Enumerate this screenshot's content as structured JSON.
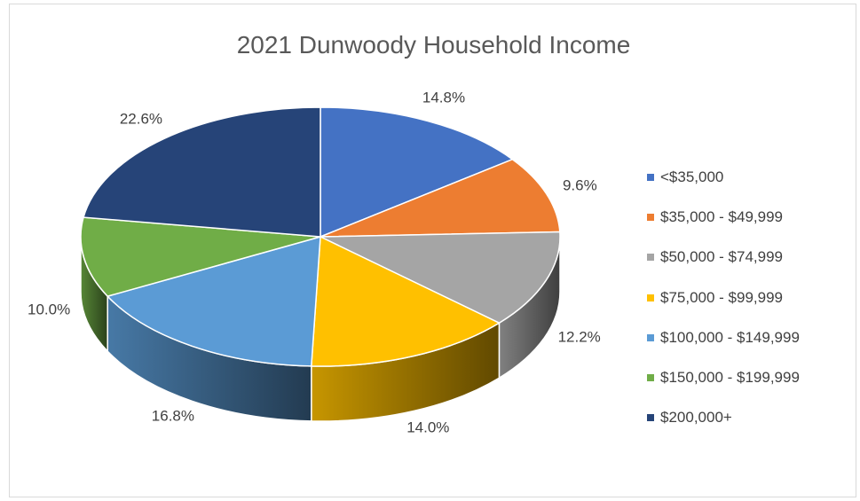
{
  "chart_data": {
    "type": "pie",
    "title": "2021 Dunwoody Household Income",
    "legend_position": "right",
    "slices": [
      {
        "label": "<$35,000",
        "value": 14.8,
        "display": "14.8%",
        "color": "#4472c4"
      },
      {
        "label": "$35,000 - $49,999",
        "value": 9.6,
        "display": "9.6%",
        "color": "#ed7d31"
      },
      {
        "label": "$50,000 - $74,999",
        "value": 12.2,
        "display": "12.2%",
        "color": "#a5a5a5"
      },
      {
        "label": "$75,000 - $99,999",
        "value": 14.0,
        "display": "14.0%",
        "color": "#ffc000"
      },
      {
        "label": "$100,000 - $149,999",
        "value": 16.8,
        "display": "16.8%",
        "color": "#5b9bd5"
      },
      {
        "label": "$150,000 - $199,999",
        "value": 10.0,
        "display": "10.0%",
        "color": "#70ad47"
      },
      {
        "label": "$200,000+",
        "value": 22.6,
        "display": "22.6%",
        "color": "#264478"
      }
    ]
  }
}
